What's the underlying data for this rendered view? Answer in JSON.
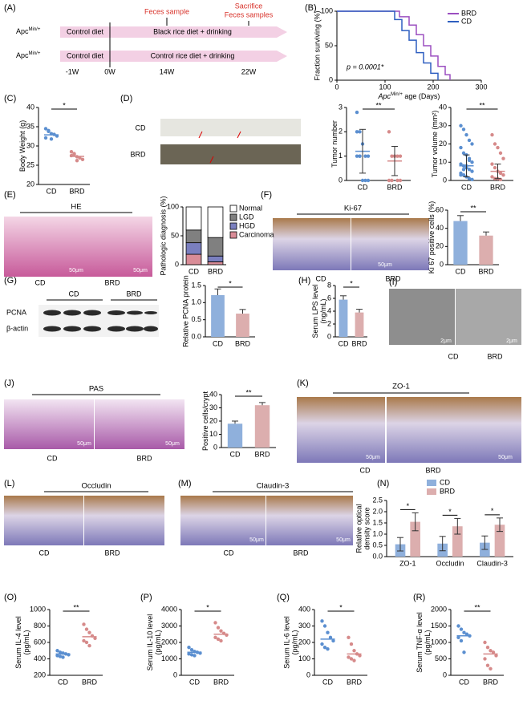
{
  "panel_labels": [
    "(A)",
    "(B)",
    "(C)",
    "(D)",
    "(E)",
    "(F)",
    "(G)",
    "(H)",
    "(I)",
    "(J)",
    "(K)",
    "(L)",
    "(M)",
    "(N)",
    "(O)",
    "(P)",
    "(Q)",
    "(R)"
  ],
  "timeline": {
    "apc": {
      "base": "Apc",
      "sup": "Min/+"
    },
    "rows": [
      {
        "diet": "Control diet",
        "treatment": "Black rice diet + drinking"
      },
      {
        "diet": "Control diet",
        "treatment": "Control rice diet + drinking"
      }
    ],
    "weeks": [
      "-1W",
      "0W",
      "14W",
      "22W"
    ],
    "events": [
      [
        "Feces sample"
      ],
      [
        "Sacrifice",
        "Feces samples"
      ]
    ]
  },
  "images": {
    "D": {
      "labels": [
        "CD",
        "BRD"
      ]
    },
    "E": {
      "title": "HE",
      "scales": [
        "50μm",
        "50μm"
      ],
      "labels": [
        "CD",
        "BRD"
      ]
    },
    "F": {
      "title": "Ki-67",
      "scales": [
        "50μm"
      ],
      "labels": [
        "CD",
        "BRD"
      ]
    },
    "G": {
      "labels": [
        "CD",
        "BRD"
      ],
      "rows": [
        "PCNA",
        "β-actin"
      ]
    },
    "I": {
      "scales": [
        "2μm",
        "2μm"
      ],
      "labels": [
        "CD",
        "BRD"
      ]
    },
    "J": {
      "title": "PAS",
      "scales": [
        "50μm",
        "50μm"
      ],
      "labels": [
        "CD",
        "BRD"
      ]
    },
    "K": {
      "title": "ZO-1",
      "scales": [
        "50μm",
        "50μm"
      ],
      "labels": [
        "CD",
        "BRD"
      ]
    },
    "L": {
      "title": "Occludin",
      "labels": [
        "CD",
        "BRD"
      ]
    },
    "M": {
      "title": "Claudin-3",
      "scales": [
        "50μm",
        "50μm"
      ],
      "labels": [
        "CD",
        "BRD"
      ]
    }
  },
  "chart_data": [
    {
      "type": "line",
      "ylabel": [
        "Fraction surviving (%)"
      ],
      "xlabel": {
        "base": "Apc",
        "sup": "Min/+",
        "rest": " age (Days)"
      },
      "annotation": "p = 0.0001*",
      "xlim": [
        0,
        300
      ],
      "xticks": [
        0,
        100,
        200,
        300
      ],
      "ylim": [
        0,
        100
      ],
      "yticks": [
        0,
        50,
        100
      ],
      "series": [
        {
          "name": "BRD",
          "color": "#9b4fc0",
          "x": [
            0,
            130,
            130,
            150,
            150,
            165,
            165,
            180,
            180,
            195,
            195,
            210,
            210,
            225,
            225,
            235,
            235
          ],
          "values": [
            100,
            100,
            92,
            92,
            80,
            80,
            66,
            66,
            50,
            50,
            35,
            35,
            20,
            20,
            8,
            8,
            0
          ]
        },
        {
          "name": "CD",
          "color": "#2e5fc0",
          "x": [
            0,
            120,
            120,
            135,
            135,
            150,
            150,
            165,
            165,
            180,
            180,
            195,
            195,
            210,
            210
          ],
          "values": [
            100,
            100,
            88,
            88,
            72,
            72,
            58,
            58,
            40,
            40,
            25,
            25,
            10,
            10,
            0
          ]
        }
      ]
    },
    {
      "type": "dot",
      "ylabel": [
        "Body Weight (g)"
      ],
      "categories": [
        "CD",
        "BRD"
      ],
      "colors": [
        "#5b8fd0",
        "#d68a8a"
      ],
      "ylim": [
        20,
        40
      ],
      "yticks": [
        20,
        25,
        30,
        35,
        40
      ],
      "points": [
        [
          34.5,
          33.8,
          33.2,
          33,
          32.6,
          32.1,
          34,
          31.8
        ],
        [
          28.5,
          27.8,
          27.2,
          26.9,
          26.5,
          27.5,
          28,
          26.2
        ]
      ],
      "values": [
        32.9,
        27.3
      ],
      "significance": "*"
    },
    {
      "type": "dot",
      "ylabel": [
        "Tumor number"
      ],
      "categories": [
        "CD",
        "BRD"
      ],
      "colors": [
        "#5b8fd0",
        "#d68a8a"
      ],
      "ylim": [
        0,
        3
      ],
      "yticks": [
        0,
        1,
        2,
        3
      ],
      "points": [
        [
          2.8,
          2,
          1.5,
          1,
          1,
          1,
          1,
          0,
          0,
          0,
          2,
          1
        ],
        [
          2,
          1,
          1,
          1,
          0,
          0,
          0,
          1,
          0,
          1
        ]
      ],
      "values": [
        1.2,
        0.8
      ],
      "errors": [
        0.9,
        0.6
      ],
      "significance": "**"
    },
    {
      "type": "dot",
      "ylabel": [
        "Tumor volume (mm²)"
      ],
      "categories": [
        "CD",
        "BRD"
      ],
      "colors": [
        "#5b8fd0",
        "#d68a8a"
      ],
      "ylim": [
        0,
        40
      ],
      "yticks": [
        0,
        10,
        20,
        30,
        40
      ],
      "points": [
        [
          30,
          28,
          25,
          22,
          20,
          18,
          15,
          14,
          12,
          10,
          9,
          8,
          7,
          6,
          5,
          4,
          3,
          2,
          1,
          0.5,
          3,
          6,
          8,
          11
        ],
        [
          25,
          20,
          18,
          15,
          12,
          9,
          7,
          5,
          4,
          3,
          2,
          1,
          1,
          0.5
        ]
      ],
      "values": [
        8,
        5
      ],
      "errors": [
        6,
        4
      ],
      "significance": "**"
    },
    {
      "type": "stacked_bar",
      "ylabel": [
        "Pathologic diagnosis (%)"
      ],
      "categories": [
        "CD",
        "BRD"
      ],
      "ylim": [
        0,
        100
      ],
      "yticks": [
        0,
        50,
        100
      ],
      "series": [
        {
          "name": "Carcinoma",
          "color": "#d98c97",
          "values": [
            18,
            5
          ]
        },
        {
          "name": "HGD",
          "color": "#7a7fbf",
          "values": [
            20,
            10
          ]
        },
        {
          "name": "LGD",
          "color": "#808080",
          "values": [
            22,
            32
          ]
        },
        {
          "name": "Normal",
          "color": "#ffffff",
          "values": [
            40,
            53
          ]
        }
      ]
    },
    {
      "type": "bar",
      "ylabel": [
        "Ki 67 positive cells (%)"
      ],
      "categories": [
        "CD",
        "BRD"
      ],
      "colors": [
        "#8fb0dc",
        "#dcaeae"
      ],
      "ylim": [
        0,
        60
      ],
      "yticks": [
        0,
        20,
        40,
        60
      ],
      "values": [
        48,
        32
      ],
      "errors": [
        6,
        4
      ],
      "significance": "**"
    },
    {
      "type": "bar",
      "ylabel": [
        "Relative PCNA protein"
      ],
      "categories": [
        "CD",
        "BRD"
      ],
      "colors": [
        "#8fb0dc",
        "#dcaeae"
      ],
      "ylim": [
        0,
        1.5
      ],
      "yticks": [
        {
          "value": 0,
          "label": "0.0"
        },
        0.5,
        {
          "value": 1,
          "label": "1.0"
        },
        1.5
      ],
      "values": [
        1.22,
        0.68
      ],
      "errors": [
        0.18,
        0.12
      ],
      "significance": "*"
    },
    {
      "type": "bar",
      "ylabel": [
        "Serum LPS level",
        "(ng/mL)"
      ],
      "categories": [
        "CD",
        "BRD"
      ],
      "colors": [
        "#8fb0dc",
        "#dcaeae"
      ],
      "ylim": [
        0,
        8
      ],
      "yticks": [
        0,
        2,
        4,
        6,
        8
      ],
      "values": [
        5.8,
        3.8
      ],
      "errors": [
        0.6,
        0.5
      ],
      "significance": "*"
    },
    {
      "type": "bar",
      "ylabel": [
        "Positive cells/crypt"
      ],
      "categories": [
        "CD",
        "BRD"
      ],
      "colors": [
        "#8fb0dc",
        "#dcaeae"
      ],
      "ylim": [
        0,
        40
      ],
      "yticks": [
        0,
        10,
        20,
        30,
        40
      ],
      "values": [
        18,
        32
      ],
      "errors": [
        2,
        2
      ],
      "significance": "**"
    },
    {
      "type": "grouped_bar",
      "ylabel": [
        "Relative optical",
        "density score"
      ],
      "categories": [
        "ZO-1",
        "Occludin",
        "Claudin-3"
      ],
      "ylim": [
        0,
        2.5
      ],
      "yticks": [
        {
          "value": 0,
          "label": "0.0"
        },
        0.5,
        {
          "value": 1,
          "label": "1.0"
        },
        1.5,
        {
          "value": 2,
          "label": "2.0"
        },
        2.5
      ],
      "series": [
        {
          "name": "CD",
          "color": "#8fb0dc",
          "values": [
            0.55,
            0.58,
            0.62
          ],
          "errors": [
            0.3,
            0.32,
            0.3
          ]
        },
        {
          "name": "BRD",
          "color": "#dcaeae",
          "values": [
            1.55,
            1.35,
            1.42
          ],
          "errors": [
            0.4,
            0.35,
            0.3
          ]
        }
      ],
      "significance": [
        "*",
        "*",
        "*"
      ]
    },
    {
      "type": "dot",
      "ylabel": [
        "Serum IL-4 level",
        "(pg/mL)"
      ],
      "categories": [
        "CD",
        "BRD"
      ],
      "colors": [
        "#5b8fd0",
        "#d68a8a"
      ],
      "ylim": [
        200,
        1000
      ],
      "yticks": [
        200,
        400,
        600,
        800,
        1000
      ],
      "points": [
        [
          500,
          480,
          470,
          460,
          450,
          440,
          430,
          420
        ],
        [
          820,
          760,
          720,
          680,
          650,
          620,
          600,
          560
        ]
      ],
      "values": [
        460,
        670
      ],
      "significance": "**"
    },
    {
      "type": "dot",
      "ylabel": [
        "Serum IL-10 level",
        "(pg/mL)"
      ],
      "categories": [
        "CD",
        "BRD"
      ],
      "colors": [
        "#5b8fd0",
        "#d68a8a"
      ],
      "ylim": [
        0,
        4000
      ],
      "yticks": [
        0,
        1000,
        2000,
        3000,
        4000
      ],
      "points": [
        [
          1700,
          1550,
          1450,
          1400,
          1350,
          1300,
          1250,
          1200
        ],
        [
          3200,
          2900,
          2700,
          2550,
          2450,
          2300,
          2200,
          2100
        ]
      ],
      "values": [
        1400,
        2500
      ],
      "significance": "*"
    },
    {
      "type": "dot",
      "ylabel": [
        "Serum IL-6 level",
        "(pg/mL)"
      ],
      "categories": [
        "CD",
        "BRD"
      ],
      "colors": [
        "#5b8fd0",
        "#d68a8a"
      ],
      "ylim": [
        0,
        400
      ],
      "yticks": [
        0,
        100,
        200,
        300,
        400
      ],
      "points": [
        [
          330,
          300,
          260,
          230,
          210,
          190,
          170,
          160
        ],
        [
          230,
          190,
          150,
          130,
          120,
          110,
          100,
          90
        ]
      ],
      "values": [
        220,
        130
      ],
      "significance": "*"
    },
    {
      "type": "dot",
      "ylabel": [
        "Serum TNF-α level",
        "(pg/mL)"
      ],
      "categories": [
        "CD",
        "BRD"
      ],
      "colors": [
        "#5b8fd0",
        "#d68a8a"
      ],
      "ylim": [
        0,
        2000
      ],
      "yticks": [
        0,
        500,
        1000,
        1500,
        2000
      ],
      "points": [
        [
          1500,
          1400,
          1300,
          1250,
          1200,
          1150,
          1050,
          700
        ],
        [
          1000,
          850,
          750,
          700,
          600,
          500,
          300,
          200
        ]
      ],
      "values": [
        1200,
        650
      ],
      "significance": "**"
    }
  ]
}
